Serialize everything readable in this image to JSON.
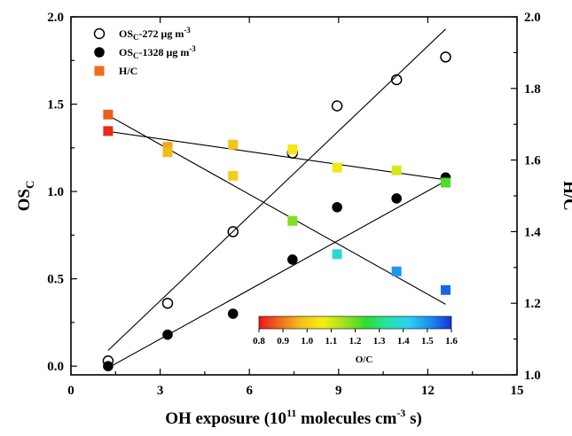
{
  "chart_data": {
    "type": "scatter",
    "xlabel": "OH exposure (10",
    "xlabel_sup": "11",
    "xlabel_mid": " molecules cm",
    "xlabel_sup2": "-3",
    "xlabel_end": " s)",
    "ylabel_left_main": "OS",
    "ylabel_left_sub": "C",
    "ylabel_right": "H/C",
    "xlim": [
      0,
      15
    ],
    "ylim_left": [
      -0.05,
      2.0
    ],
    "ylim_right": [
      1.0,
      2.0
    ],
    "x_ticks": [
      "0",
      "3",
      "6",
      "9",
      "12",
      "15"
    ],
    "x_tick_values": [
      0,
      3,
      6,
      9,
      12,
      15
    ],
    "y_left_ticks": [
      "0.0",
      "0.5",
      "1.0",
      "1.5",
      "2.0"
    ],
    "y_left_tick_values": [
      0.0,
      0.5,
      1.0,
      1.5,
      2.0
    ],
    "y_right_ticks": [
      "1.0",
      "1.2",
      "1.4",
      "1.6",
      "1.8",
      "2.0"
    ],
    "y_right_tick_values": [
      1.0,
      1.2,
      1.4,
      1.6,
      1.8,
      2.0
    ],
    "legend": [
      {
        "main": "OS",
        "sub": "C",
        "rest": "-272 μg m",
        "sup": "-3",
        "marker": "open-circle"
      },
      {
        "main": "OS",
        "sub": "C",
        "rest": "-1328 μg m",
        "sup": "-3",
        "marker": "filled-circle"
      },
      {
        "main": "H/C",
        "sub": "",
        "rest": "",
        "sup": "",
        "marker": "square",
        "color": "#f26a1b"
      }
    ],
    "series": [
      {
        "marker": "open-circle",
        "axis": "left",
        "x": [
          1.25,
          3.25,
          5.45,
          7.45,
          8.95,
          10.95,
          12.6
        ],
        "y": [
          0.03,
          0.36,
          0.77,
          1.22,
          1.49,
          1.64,
          1.77
        ],
        "fit": {
          "x": [
            1.25,
            12.6
          ],
          "y": [
            0.09,
            1.93
          ]
        }
      },
      {
        "marker": "filled-circle",
        "axis": "left",
        "x": [
          1.25,
          3.25,
          5.45,
          7.45,
          8.95,
          10.95,
          12.6
        ],
        "y": [
          0.0,
          0.18,
          0.3,
          0.61,
          0.91,
          0.96,
          1.08
        ],
        "fit": {
          "x": [
            1.25,
            12.6
          ],
          "y": [
            -0.01,
            1.06
          ]
        }
      },
      {
        "marker": "square",
        "axis": "right",
        "x": [
          1.25,
          3.25,
          5.45,
          7.45,
          8.95,
          10.95,
          12.6
        ],
        "y": [
          1.727,
          1.637,
          1.556,
          1.43,
          1.337,
          1.289,
          1.237
        ],
        "oc": [
          0.87,
          0.95,
          1.0,
          1.18,
          1.38,
          1.5,
          1.55
        ],
        "fit": {
          "x": [
            1.25,
            12.6
          ],
          "y": [
            1.725,
            1.197
          ]
        }
      },
      {
        "marker": "square",
        "axis": "right",
        "x": [
          1.25,
          3.25,
          5.45,
          7.45,
          8.95,
          10.95,
          12.6
        ],
        "y": [
          1.681,
          1.622,
          1.643,
          1.63,
          1.579,
          1.571,
          1.537
        ],
        "oc": [
          0.82,
          0.97,
          0.98,
          1.05,
          1.08,
          1.1,
          1.22
        ],
        "fit": {
          "x": [
            1.25,
            12.6
          ],
          "y": [
            1.68,
            1.545
          ]
        }
      }
    ],
    "colorbar": {
      "label": "O/C",
      "ticks": [
        "0.8",
        "0.9",
        "1.0",
        "1.1",
        "1.2",
        "1.3",
        "1.4",
        "1.5",
        "1.6"
      ],
      "range": [
        0.8,
        1.6
      ],
      "colors": [
        "#e8161c",
        "#f06f1a",
        "#f4c21c",
        "#f5ee12",
        "#9fe01e",
        "#2edc2e",
        "#26e3a6",
        "#2ad0f0",
        "#1a8ff0",
        "#1432d8"
      ]
    }
  }
}
